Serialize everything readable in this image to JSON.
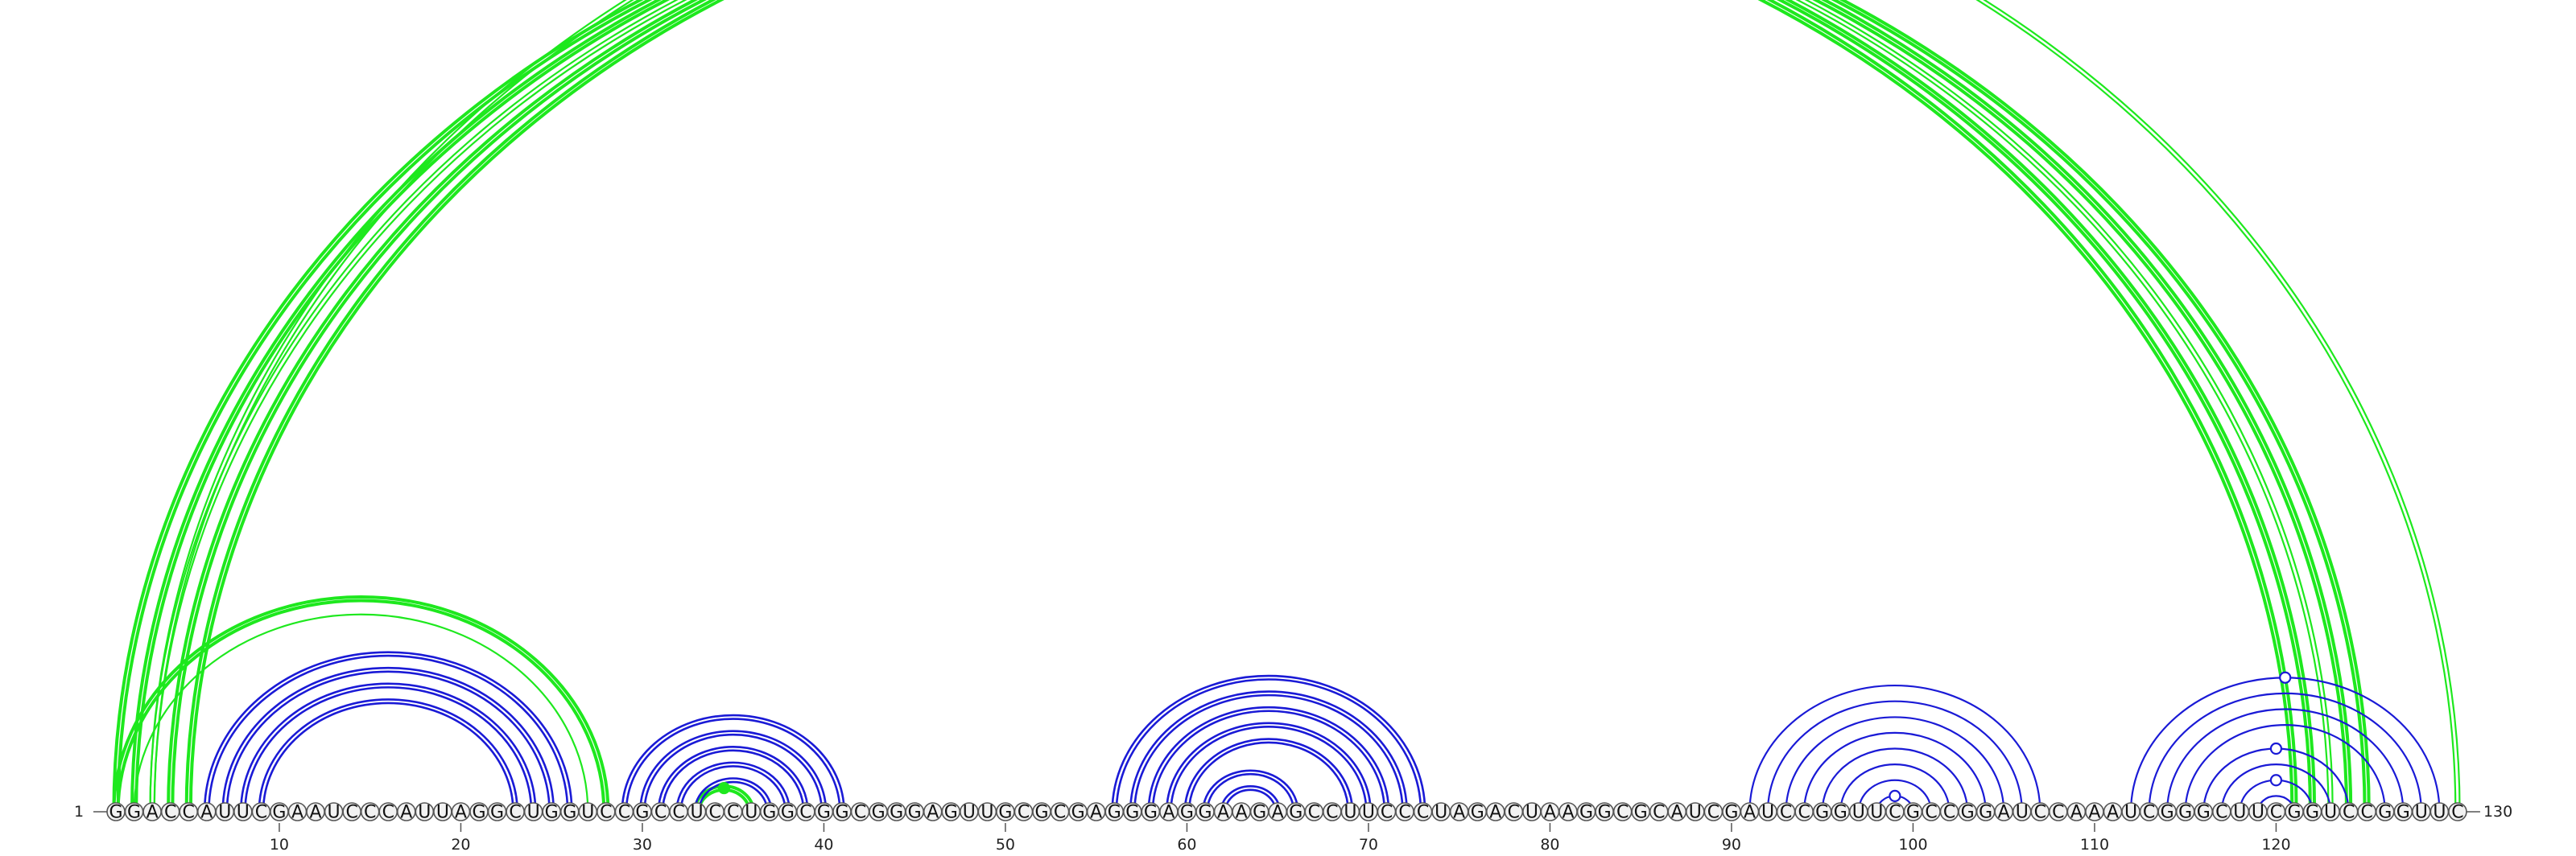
{
  "diagram": {
    "type": "rna-arc-diagram",
    "sequence": "GGACCAUUCGAAUCCCAUUAGGCUGGUCCGCCUCCUGGCGGCGGGAGUUGCGCGAGGGAGGAAGAGCCUUCCCUAGACUAAGGCGCAUCGAUCCGGUUCGCCGGAUCCAAAUCGGGCUUCGGUCCGGUUC",
    "start_label": "1",
    "end_label": "130",
    "ticks": [
      "10",
      "20",
      "30",
      "40",
      "50",
      "60",
      "70",
      "80",
      "90",
      "100",
      "110",
      "120"
    ],
    "colors": {
      "green": "#1ee81e",
      "blue": "#1a1ad6",
      "base_fill": "#f2f2f2",
      "base_stroke": "#555555"
    },
    "green_arcs": [
      {
        "i": 1,
        "j": 121,
        "strands": 2,
        "weight": "bold"
      },
      {
        "i": 2,
        "j": 122,
        "strands": 2,
        "weight": "bold"
      },
      {
        "i": 3,
        "j": 123,
        "strands": 2,
        "weight": "thin"
      },
      {
        "i": 4,
        "j": 124,
        "strands": 2,
        "weight": "bold"
      },
      {
        "i": 5,
        "j": 125,
        "strands": 2,
        "weight": "bold"
      },
      {
        "i": 3,
        "j": 130,
        "strands": 2,
        "weight": "thin",
        "marker": "open"
      },
      {
        "i": 1,
        "j": 28,
        "strands": 2,
        "weight": "bold"
      },
      {
        "i": 2,
        "j": 27,
        "strands": 1,
        "weight": "thin"
      },
      {
        "i": 33,
        "j": 36,
        "strands": 2,
        "weight": "bold",
        "marker": "filled"
      }
    ],
    "blue_helices": [
      {
        "name": "helix-1",
        "pairs": [
          [
            6,
            26
          ],
          [
            7,
            25
          ],
          [
            8,
            24
          ],
          [
            9,
            23
          ]
        ],
        "strands": 2
      },
      {
        "name": "helix-2",
        "pairs": [
          [
            29,
            41
          ],
          [
            30,
            40
          ],
          [
            31,
            39
          ],
          [
            32,
            38
          ],
          [
            33,
            37
          ]
        ],
        "strands": 2
      },
      {
        "name": "helix-3",
        "pairs": [
          [
            56,
            73
          ],
          [
            57,
            72
          ],
          [
            58,
            71
          ],
          [
            59,
            70
          ],
          [
            60,
            69
          ],
          [
            61,
            66
          ],
          [
            62,
            65
          ]
        ],
        "strands": 2
      },
      {
        "name": "helix-4",
        "pairs": [
          [
            91,
            107
          ],
          [
            92,
            106
          ],
          [
            93,
            105
          ],
          [
            94,
            104
          ],
          [
            95,
            103
          ],
          [
            96,
            102
          ],
          [
            97,
            101
          ],
          [
            98,
            100
          ]
        ],
        "strands": 1
      },
      {
        "name": "helix-5",
        "pairs": [
          [
            112,
            129
          ],
          [
            113,
            128
          ],
          [
            114,
            127
          ],
          [
            115,
            126
          ],
          [
            116,
            124
          ],
          [
            117,
            123
          ],
          [
            118,
            122
          ],
          [
            119,
            121
          ]
        ],
        "strands": 1
      }
    ],
    "blue_markers": [
      {
        "i": 98,
        "j": 100
      },
      {
        "i": 112,
        "j": 129
      },
      {
        "i": 116,
        "j": 124
      },
      {
        "i": 118,
        "j": 122
      }
    ]
  }
}
